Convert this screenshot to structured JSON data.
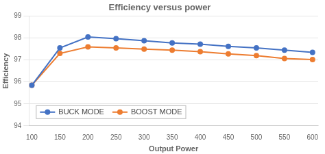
{
  "chart_data": {
    "type": "line",
    "title": "Efficiency versus power",
    "xlabel": "Output Power",
    "ylabel": "Efficiency",
    "x": [
      100,
      150,
      200,
      250,
      300,
      350,
      400,
      450,
      500,
      550,
      600
    ],
    "series": [
      {
        "name": "BUCK MODE",
        "color": "#4472C4",
        "marker": "circle",
        "values": [
          95.85,
          97.55,
          98.05,
          97.97,
          97.88,
          97.78,
          97.72,
          97.62,
          97.55,
          97.45,
          97.35
        ]
      },
      {
        "name": "BOOST MODE",
        "color": "#ED7D31",
        "marker": "circle",
        "values": [
          95.85,
          97.3,
          97.6,
          97.55,
          97.5,
          97.45,
          97.38,
          97.28,
          97.2,
          97.07,
          97.02
        ]
      }
    ],
    "xlim": [
      95,
      610
    ],
    "xticks": [
      100,
      150,
      200,
      250,
      300,
      350,
      400,
      450,
      500,
      550,
      600
    ],
    "ylim": [
      94,
      99
    ],
    "yticks": [
      94,
      95,
      96,
      97,
      98,
      99
    ],
    "grid": "y",
    "legend": "lower left"
  }
}
